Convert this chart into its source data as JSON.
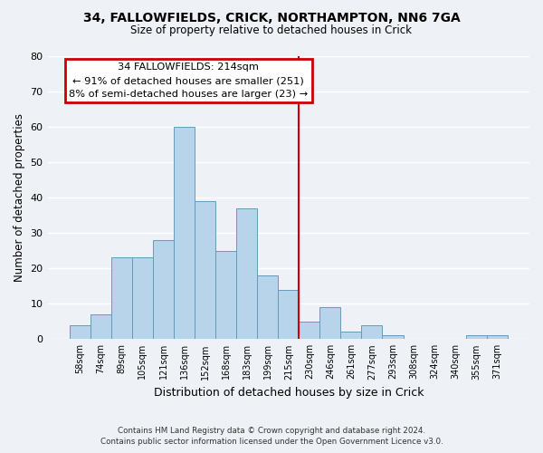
{
  "title": "34, FALLOWFIELDS, CRICK, NORTHAMPTON, NN6 7GA",
  "subtitle": "Size of property relative to detached houses in Crick",
  "xlabel": "Distribution of detached houses by size in Crick",
  "ylabel": "Number of detached properties",
  "bin_labels": [
    "58sqm",
    "74sqm",
    "89sqm",
    "105sqm",
    "121sqm",
    "136sqm",
    "152sqm",
    "168sqm",
    "183sqm",
    "199sqm",
    "215sqm",
    "230sqm",
    "246sqm",
    "261sqm",
    "277sqm",
    "293sqm",
    "308sqm",
    "324sqm",
    "340sqm",
    "355sqm",
    "371sqm"
  ],
  "bar_heights": [
    4,
    7,
    23,
    23,
    28,
    60,
    39,
    25,
    37,
    18,
    14,
    5,
    9,
    2,
    4,
    1,
    0,
    0,
    0,
    1,
    1
  ],
  "bar_color": "#b8d4ea",
  "bar_edge_color": "#6699bb",
  "vline_x_idx": 10,
  "vline_color": "#cc0000",
  "annotation_title": "34 FALLOWFIELDS: 214sqm",
  "annotation_line1": "← 91% of detached houses are smaller (251)",
  "annotation_line2": "8% of semi-detached houses are larger (23) →",
  "annotation_box_color": "#ffffff",
  "annotation_box_edge": "#cc0000",
  "ylim": [
    0,
    80
  ],
  "yticks": [
    0,
    10,
    20,
    30,
    40,
    50,
    60,
    70,
    80
  ],
  "footnote1": "Contains HM Land Registry data © Crown copyright and database right 2024.",
  "footnote2": "Contains public sector information licensed under the Open Government Licence v3.0.",
  "bg_color": "#eef2f7"
}
